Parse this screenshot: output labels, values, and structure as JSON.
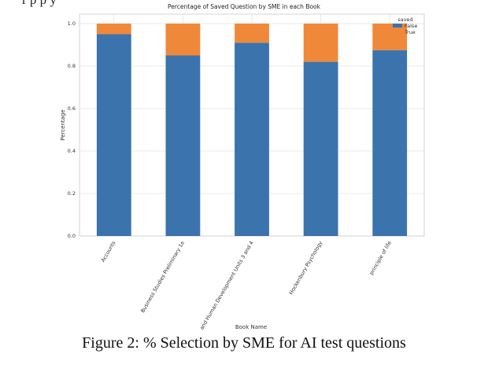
{
  "page": {
    "top_fragment": "r  p    p    y",
    "caption": "Figure 2: % Selection by SME for AI test questions"
  },
  "chart_data": {
    "type": "bar",
    "stacked": true,
    "title": "Percentage of Saved Question by SME in each Book",
    "xlabel": "Book Name",
    "ylabel": "Percentage",
    "ylim": [
      0,
      1.0
    ],
    "yticks": [
      "0.0",
      "0.2",
      "0.4",
      "0.6",
      "0.8",
      "1.0"
    ],
    "grid": true,
    "categories": [
      "Accounts",
      "Business Studies Preliminary 1e",
      "Health and Human Development Units 3 and 4",
      "Hockenbury Psychology",
      "principle of life"
    ],
    "series": [
      {
        "name": "False",
        "color": "#3b73ad",
        "values": [
          0.95,
          0.85,
          0.91,
          0.82,
          0.875
        ]
      },
      {
        "name": "True",
        "color": "#f0883a",
        "values": [
          0.05,
          0.15,
          0.09,
          0.18,
          0.125
        ]
      }
    ],
    "legend": {
      "title": "saved",
      "position": "top-right"
    }
  }
}
